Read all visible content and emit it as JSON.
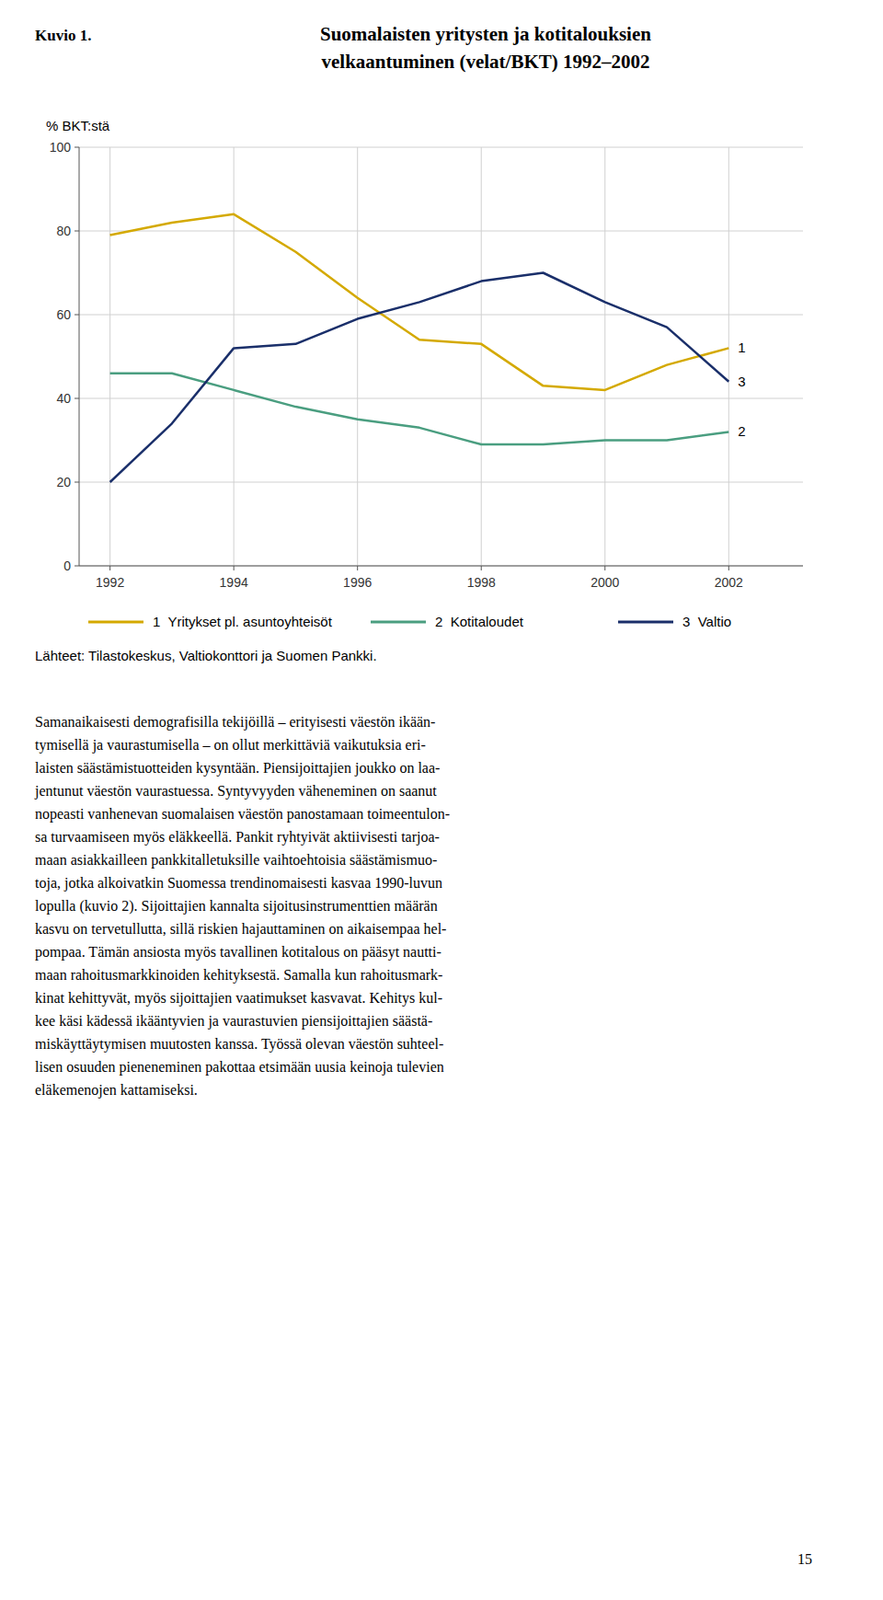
{
  "chart_data": {
    "type": "line",
    "title": "Suomalaisten yritysten ja kotitalouksien\nvelkaantuminen (velat/BKT) 1992–2002",
    "y_label": "% BKT:stä",
    "x": [
      1992,
      1993,
      1994,
      1995,
      1996,
      1997,
      1998,
      1999,
      2000,
      2001,
      2002
    ],
    "series": [
      {
        "name": "1  Yritykset pl. asuntoyhteisöt",
        "color": "#D4A900",
        "values": [
          79,
          82,
          84,
          75,
          64,
          54,
          53,
          43,
          42,
          48,
          52
        ]
      },
      {
        "name": "2  Kotitaloudet",
        "color": "#4A9E80",
        "values": [
          46,
          46,
          42,
          38,
          35,
          33,
          29,
          29,
          30,
          30,
          32
        ]
      },
      {
        "name": "3  Valtio",
        "color": "#1A2F6A",
        "values": [
          20,
          34,
          52,
          53,
          59,
          63,
          68,
          70,
          63,
          57,
          44
        ]
      }
    ],
    "annotations": [
      "1",
      "2",
      "3"
    ],
    "xlim": [
      1991.5,
      2003.2
    ],
    "xticks": [
      1992,
      1994,
      1996,
      1998,
      2000,
      2002
    ],
    "ylim": [
      0,
      100
    ],
    "yticks": [
      0,
      20,
      40,
      60,
      80,
      100
    ],
    "grid": true,
    "legend": "bottom",
    "source": "Lähteet: Tilastokeskus, Valtiokonttori ja Suomen Pankki."
  },
  "page": {
    "figure_label": "Kuvio 1.",
    "body_text": [
      "Samanaikaisesti demografisilla tekijöillä – erityisesti väestön ikään-",
      "tymisellä ja vaurastumisella – on ollut merkittäviä vaikutuksia eri-",
      "laisten säästämistuotteiden kysyntään. Piensijoittajien joukko on laa-",
      "jentunut väestön vaurastuessa. Syntyvyyden väheneminen on saanut",
      "nopeasti vanhenevan suomalaisen väestön panostamaan toimeentulon-",
      "sa turvaamiseen myös eläkkeellä. Pankit ryhtyivät aktiivisesti tarjoa-",
      "maan asiakkailleen pankkitalletuksille vaihtoehtoisia säästämismuо-",
      "toja, jotka alkoivatkin Suomessa trendinomaisesti kasvaa 1990-luvun",
      "lopulla (kuvio 2). Sijoittajien kannalta sijoitusinstrumenttien määrän",
      "kasvu on tervetullutta, sillä riskien hajauttaminen on aikaisempaa hel-",
      "pompaa. Tämän ansiosta myös tavallinen kotitalous on pääsyt nautti-",
      "maan rahoitusmarkkinoiden kehityksestä. Samalla kun rahoitusmark-",
      "kinat kehittyvät, myös sijoittajien vaatimukset kasvavat. Kehitys kul-",
      "kee käsi kädessä ikääntyvien ja vaurastuvien piensijoittajien säästä-",
      "miskäyttäytymisen muutosten kanssa. Työssä olevan väestön suhteel-",
      "lisen osuuden pieneneminen pakottaa etsimään uusia keinoja tulevien",
      "eläkemenojen kattamiseksi."
    ],
    "page_number": "15"
  }
}
